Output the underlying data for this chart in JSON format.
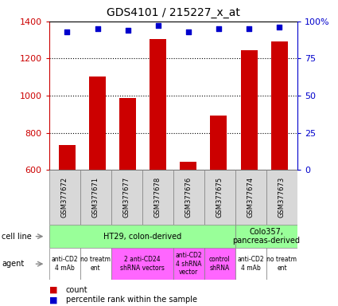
{
  "title": "GDS4101 / 215227_x_at",
  "samples": [
    "GSM377672",
    "GSM377671",
    "GSM377677",
    "GSM377678",
    "GSM377676",
    "GSM377675",
    "GSM377674",
    "GSM377673"
  ],
  "counts": [
    735,
    1105,
    985,
    1305,
    645,
    893,
    1245,
    1290
  ],
  "percentiles": [
    93,
    95,
    94,
    97,
    93,
    95,
    95,
    96
  ],
  "bar_color": "#cc0000",
  "dot_color": "#0000cc",
  "ylim_left": [
    600,
    1400
  ],
  "yticks_left": [
    600,
    800,
    1000,
    1200,
    1400
  ],
  "ylim_right": [
    0,
    100
  ],
  "yticks_right": [
    0,
    25,
    50,
    75,
    100
  ],
  "ytick_labels_right": [
    "0",
    "25",
    "50",
    "75",
    "100%"
  ],
  "cell_line_data": [
    {
      "label": "HT29, colon-derived",
      "start": 0,
      "end": 6,
      "color": "#99ff99"
    },
    {
      "label": "Colo357,\npancreas-derived",
      "start": 6,
      "end": 8,
      "color": "#99ff99"
    }
  ],
  "agent_data": [
    {
      "label": "anti-CD2\n4 mAb",
      "start": 0,
      "end": 1,
      "color": "#ffffff"
    },
    {
      "label": "no treatm\nent",
      "start": 1,
      "end": 2,
      "color": "#ffffff"
    },
    {
      "label": "2 anti-CD24\nshRNA vectors",
      "start": 2,
      "end": 4,
      "color": "#ff66ff"
    },
    {
      "label": "anti-CD2\n4 shRNA\nvector",
      "start": 4,
      "end": 5,
      "color": "#ff66ff"
    },
    {
      "label": "control\nshRNA",
      "start": 5,
      "end": 6,
      "color": "#ff66ff"
    },
    {
      "label": "anti-CD2\n4 mAb",
      "start": 6,
      "end": 7,
      "color": "#ffffff"
    },
    {
      "label": "no treatm\nent",
      "start": 7,
      "end": 8,
      "color": "#ffffff"
    }
  ],
  "left_color": "#cc0000",
  "right_color": "#0000cc",
  "sample_bg": "#d8d8d8",
  "grid_yticks": [
    800,
    1000,
    1200
  ],
  "perc_dot_size": 20,
  "bar_width": 0.55
}
